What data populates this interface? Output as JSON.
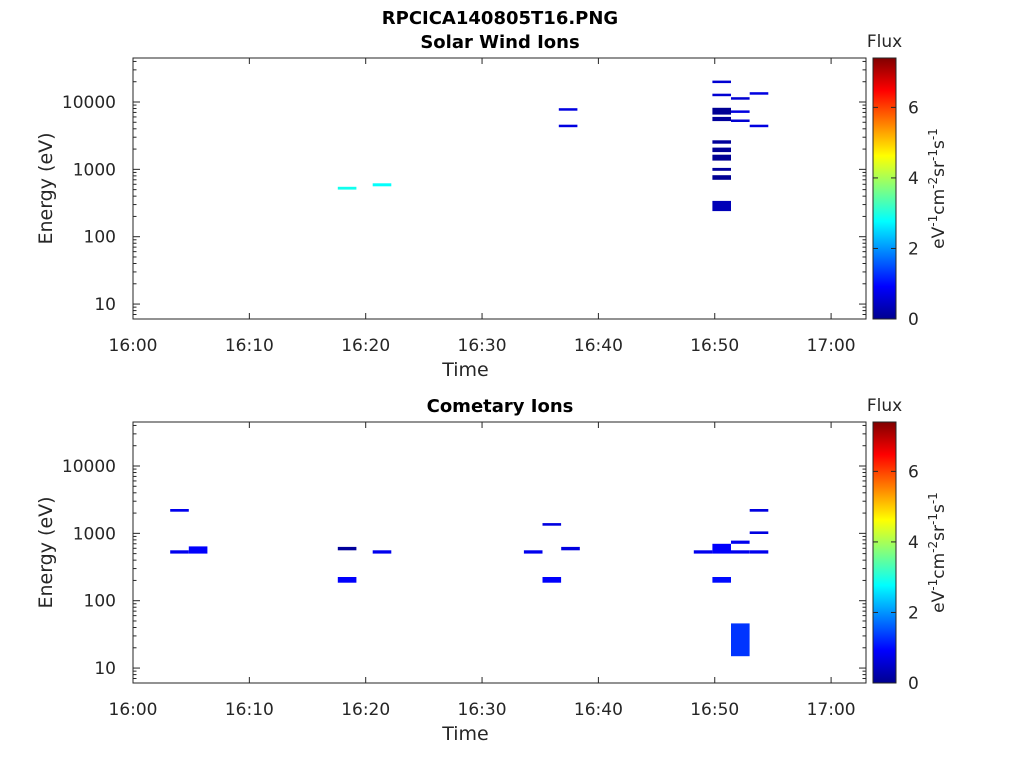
{
  "figure_title": "RPCICA140805T16.PNG",
  "chart_data": [
    {
      "type": "heatmap",
      "title": "Solar Wind Ions",
      "xlabel": "Time",
      "ylabel": "Energy (eV)",
      "y_scale": "log",
      "xlim": [
        "16:00",
        "17:03"
      ],
      "ylim": [
        6,
        45000
      ],
      "x_ticks": [
        "16:00",
        "16:10",
        "16:20",
        "16:30",
        "16:40",
        "16:50",
        "17:00"
      ],
      "y_ticks": [
        "10",
        "100",
        "1000",
        "10000"
      ],
      "colorbar": {
        "label": "Flux",
        "unit_base": "eV",
        "unit_sup1": "-1",
        "unit_mid1": "cm",
        "unit_sup2": "-2",
        "unit_mid2": "sr",
        "unit_sup3": "-1",
        "unit_mid3": "s",
        "unit_sup4": "-1",
        "range": [
          0,
          7.4
        ],
        "ticks": [
          "0",
          "2",
          "4",
          "6"
        ],
        "colormap": "jet"
      },
      "cells": [
        {
          "t0": "16:17.6",
          "t1": "16:19.2",
          "e_lo": 500,
          "e_hi": 550,
          "flux": 2.9
        },
        {
          "t0": "16:20.6",
          "t1": "16:22.2",
          "e_lo": 560,
          "e_hi": 620,
          "flux": 2.8
        },
        {
          "t0": "16:36.6",
          "t1": "16:38.2",
          "e_lo": 7600,
          "e_hi": 8100,
          "flux": 0.7
        },
        {
          "t0": "16:36.6",
          "t1": "16:38.2",
          "e_lo": 4300,
          "e_hi": 4600,
          "flux": 0.7
        },
        {
          "t0": "16:49.8",
          "t1": "16:51.4",
          "e_lo": 19500,
          "e_hi": 20800,
          "flux": 0.6
        },
        {
          "t0": "16:49.8",
          "t1": "16:51.4",
          "e_lo": 12500,
          "e_hi": 13300,
          "flux": 0.6
        },
        {
          "t0": "16:49.8",
          "t1": "16:51.4",
          "e_lo": 6500,
          "e_hi": 8200,
          "flux": 0.15
        },
        {
          "t0": "16:49.8",
          "t1": "16:51.4",
          "e_lo": 5200,
          "e_hi": 6000,
          "flux": 0.2
        },
        {
          "t0": "16:49.8",
          "t1": "16:51.4",
          "e_lo": 2400,
          "e_hi": 2700,
          "flux": 0.2
        },
        {
          "t0": "16:49.8",
          "t1": "16:51.4",
          "e_lo": 1800,
          "e_hi": 2100,
          "flux": 0.15
        },
        {
          "t0": "16:49.8",
          "t1": "16:51.4",
          "e_lo": 1350,
          "e_hi": 1650,
          "flux": 0.15
        },
        {
          "t0": "16:49.8",
          "t1": "16:51.4",
          "e_lo": 950,
          "e_hi": 1050,
          "flux": 0.2
        },
        {
          "t0": "16:49.8",
          "t1": "16:51.4",
          "e_lo": 700,
          "e_hi": 820,
          "flux": 0.15
        },
        {
          "t0": "16:49.8",
          "t1": "16:51.4",
          "e_lo": 240,
          "e_hi": 340,
          "flux": 0.4
        },
        {
          "t0": "16:51.4",
          "t1": "16:53.0",
          "e_lo": 11000,
          "e_hi": 11800,
          "flux": 0.6
        },
        {
          "t0": "16:51.4",
          "t1": "16:53.0",
          "e_lo": 7000,
          "e_hi": 7500,
          "flux": 0.7
        },
        {
          "t0": "16:51.4",
          "t1": "16:53.0",
          "e_lo": 5100,
          "e_hi": 5500,
          "flux": 0.6
        },
        {
          "t0": "16:53.0",
          "t1": "16:54.6",
          "e_lo": 13200,
          "e_hi": 14000,
          "flux": 0.7
        },
        {
          "t0": "16:53.0",
          "t1": "16:54.6",
          "e_lo": 4300,
          "e_hi": 4600,
          "flux": 0.7
        }
      ]
    },
    {
      "type": "heatmap",
      "title": "Cometary Ions",
      "xlabel": "Time",
      "ylabel": "Energy (eV)",
      "y_scale": "log",
      "xlim": [
        "16:00",
        "17:03"
      ],
      "ylim": [
        6,
        45000
      ],
      "x_ticks": [
        "16:00",
        "16:10",
        "16:20",
        "16:30",
        "16:40",
        "16:50",
        "17:00"
      ],
      "y_ticks": [
        "10",
        "100",
        "1000",
        "10000"
      ],
      "colorbar": {
        "label": "Flux",
        "unit_base": "eV",
        "unit_sup1": "-1",
        "unit_mid1": "cm",
        "unit_sup2": "-2",
        "unit_mid2": "sr",
        "unit_sup3": "-1",
        "unit_mid3": "s",
        "unit_sup4": "-1",
        "range": [
          0,
          7.4
        ],
        "ticks": [
          "0",
          "2",
          "4",
          "6"
        ],
        "colormap": "jet"
      },
      "cells": [
        {
          "t0": "16:03.2",
          "t1": "16:04.8",
          "e_lo": 2100,
          "e_hi": 2300,
          "flux": 0.8
        },
        {
          "t0": "16:03.2",
          "t1": "16:04.8",
          "e_lo": 500,
          "e_hi": 560,
          "flux": 0.8
        },
        {
          "t0": "16:04.8",
          "t1": "16:06.4",
          "e_lo": 500,
          "e_hi": 640,
          "flux": 0.9
        },
        {
          "t0": "16:17.6",
          "t1": "16:19.2",
          "e_lo": 560,
          "e_hi": 630,
          "flux": 0.2
        },
        {
          "t0": "16:17.6",
          "t1": "16:19.2",
          "e_lo": 185,
          "e_hi": 225,
          "flux": 0.9
        },
        {
          "t0": "16:20.6",
          "t1": "16:22.2",
          "e_lo": 500,
          "e_hi": 560,
          "flux": 0.8
        },
        {
          "t0": "16:33.6",
          "t1": "16:35.2",
          "e_lo": 500,
          "e_hi": 560,
          "flux": 0.8
        },
        {
          "t0": "16:35.2",
          "t1": "16:36.8",
          "e_lo": 1300,
          "e_hi": 1420,
          "flux": 0.7
        },
        {
          "t0": "16:35.2",
          "t1": "16:36.8",
          "e_lo": 185,
          "e_hi": 225,
          "flux": 0.9
        },
        {
          "t0": "16:36.8",
          "t1": "16:38.4",
          "e_lo": 560,
          "e_hi": 630,
          "flux": 0.7
        },
        {
          "t0": "16:48.2",
          "t1": "16:49.8",
          "e_lo": 500,
          "e_hi": 560,
          "flux": 0.8
        },
        {
          "t0": "16:49.8",
          "t1": "16:51.4",
          "e_lo": 500,
          "e_hi": 700,
          "flux": 0.9
        },
        {
          "t0": "16:49.8",
          "t1": "16:51.4",
          "e_lo": 185,
          "e_hi": 225,
          "flux": 1.0
        },
        {
          "t0": "16:51.4",
          "t1": "16:53.0",
          "e_lo": 500,
          "e_hi": 560,
          "flux": 0.8
        },
        {
          "t0": "16:51.4",
          "t1": "16:53.0",
          "e_lo": 700,
          "e_hi": 780,
          "flux": 0.8
        },
        {
          "t0": "16:51.4",
          "t1": "16:53.0",
          "e_lo": 15,
          "e_hi": 46,
          "flux": 1.3
        },
        {
          "t0": "16:53.0",
          "t1": "16:54.6",
          "e_lo": 500,
          "e_hi": 560,
          "flux": 0.8
        },
        {
          "t0": "16:53.0",
          "t1": "16:54.6",
          "e_lo": 980,
          "e_hi": 1070,
          "flux": 0.7
        },
        {
          "t0": "16:53.0",
          "t1": "16:54.6",
          "e_lo": 2100,
          "e_hi": 2300,
          "flux": 0.7
        }
      ]
    }
  ]
}
